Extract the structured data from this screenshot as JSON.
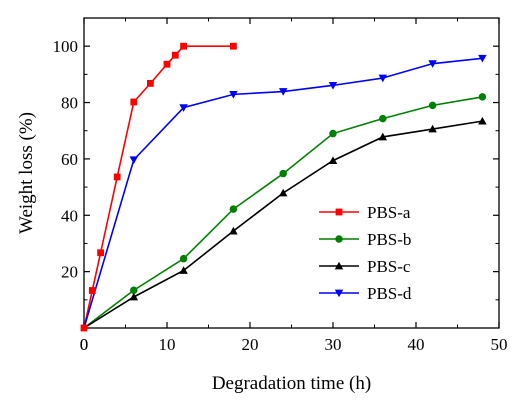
{
  "chart_data": {
    "type": "line",
    "xlabel": "Degradation time (h)",
    "ylabel": "Weight loss (%)",
    "xlim": [
      0,
      50
    ],
    "ylim": [
      0,
      110
    ],
    "xticks": [
      0,
      10,
      20,
      30,
      40,
      50
    ],
    "yticks": [
      20,
      40,
      60,
      80,
      100
    ],
    "x_tick_labels": [
      "0",
      "10",
      "20",
      "30",
      "40",
      "50"
    ],
    "y_tick_labels": [
      "20",
      "40",
      "60",
      "80",
      "100"
    ],
    "grid": false,
    "legend_position": "center-right",
    "series": [
      {
        "name": "PBS-a",
        "color": "#ff0000",
        "marker": "square",
        "points": [
          [
            0,
            0
          ],
          [
            1,
            13.3
          ],
          [
            2,
            26.7
          ],
          [
            4,
            53.6
          ],
          [
            6,
            80.2
          ],
          [
            8,
            86.8
          ],
          [
            10,
            93.6
          ],
          [
            11,
            96.8
          ],
          [
            12,
            100
          ],
          [
            18,
            100
          ]
        ]
      },
      {
        "name": "PBS-b",
        "color": "#008000",
        "marker": "circle",
        "points": [
          [
            0,
            0
          ],
          [
            6,
            13.4
          ],
          [
            12,
            24.6
          ],
          [
            18,
            42.2
          ],
          [
            24,
            54.8
          ],
          [
            30,
            69.0
          ],
          [
            36,
            74.3
          ],
          [
            42,
            79.0
          ],
          [
            48,
            82.0
          ]
        ]
      },
      {
        "name": "PBS-c",
        "color": "#000000",
        "marker": "triangle-up",
        "points": [
          [
            0,
            0
          ],
          [
            6,
            11.0
          ],
          [
            12,
            20.4
          ],
          [
            18,
            34.4
          ],
          [
            24,
            47.9
          ],
          [
            30,
            59.4
          ],
          [
            36,
            67.8
          ],
          [
            42,
            70.6
          ],
          [
            48,
            73.4
          ]
        ]
      },
      {
        "name": "PBS-d",
        "color": "#0000ff",
        "marker": "triangle-down",
        "points": [
          [
            0,
            0
          ],
          [
            6,
            59.7
          ],
          [
            12,
            78.2
          ],
          [
            18,
            82.9
          ],
          [
            24,
            83.9
          ],
          [
            30,
            86.1
          ],
          [
            36,
            88.7
          ],
          [
            42,
            93.8
          ],
          [
            48,
            95.7
          ]
        ]
      }
    ]
  }
}
